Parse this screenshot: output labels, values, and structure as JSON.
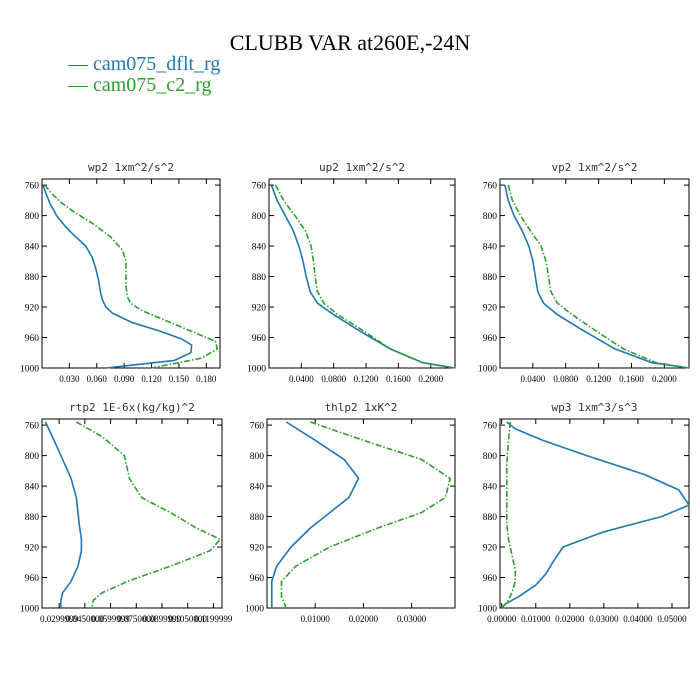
{
  "chart_data": {
    "title": "CLUBB VAR at260E,-24N",
    "legend": {
      "placement": "top-left",
      "entries": [
        {
          "label": "— cam075_dflt_rg",
          "color": "#1f77b4",
          "dash": "solid"
        },
        {
          "label": "— cam075_c2_rg",
          "color": "#2ca02c",
          "dash": "dashdot"
        }
      ]
    },
    "panels": [
      {
        "type": "line",
        "title": "wp2  1xm^2/s^2",
        "xlim": [
          0.0,
          0.195
        ],
        "ylim": [
          1000,
          752
        ],
        "xticks": [
          0.03,
          0.06,
          0.09,
          0.12,
          0.15,
          0.18
        ],
        "xtick_labels": [
          "0.030",
          "0.060",
          "0.090",
          "0.120",
          "0.150",
          "0.180"
        ],
        "yticks": [
          760,
          800,
          840,
          880,
          920,
          960,
          1000
        ],
        "ytick_labels": [
          "760",
          "800",
          "840",
          "880",
          "920",
          "960",
          "1000"
        ],
        "series": [
          {
            "name": "cam075_dflt_rg",
            "x": [
              0.001,
              0.004,
              0.009,
              0.016,
              0.026,
              0.037,
              0.048,
              0.055,
              0.059,
              0.062,
              0.064,
              0.066,
              0.07,
              0.077,
              0.098,
              0.13,
              0.153,
              0.164,
              0.163,
              0.145,
              0.07
            ],
            "y": [
              760,
              770,
              785,
              800,
              815,
              828,
              840,
              855,
              870,
              885,
              900,
              910,
              920,
              928,
              940,
              952,
              962,
              970,
              980,
              990,
              1000
            ]
          },
          {
            "name": "cam075_c2_rg",
            "x": [
              0.003,
              0.01,
              0.02,
              0.035,
              0.055,
              0.075,
              0.088,
              0.092,
              0.092,
              0.092,
              0.093,
              0.097,
              0.11,
              0.14,
              0.17,
              0.19,
              0.192,
              0.175,
              0.12
            ],
            "y": [
              760,
              770,
              782,
              795,
              810,
              828,
              845,
              860,
              875,
              890,
              905,
              915,
              925,
              940,
              955,
              965,
              975,
              987,
              1000
            ]
          }
        ]
      },
      {
        "type": "line",
        "title": "up2  1xm^2/s^2",
        "xlim": [
          0.0,
          0.23
        ],
        "ylim": [
          1000,
          752
        ],
        "xticks": [
          0.04,
          0.08,
          0.12,
          0.16,
          0.2
        ],
        "xtick_labels": [
          "0.0400",
          "0.0800",
          "0.1200",
          "0.1600",
          "0.2000"
        ],
        "yticks": [
          760,
          800,
          840,
          880,
          920,
          960,
          1000
        ],
        "ytick_labels": [
          "760",
          "800",
          "840",
          "880",
          "920",
          "960",
          "1000"
        ],
        "series": [
          {
            "name": "cam075_dflt_rg",
            "x": [
              0.003,
              0.01,
              0.02,
              0.03,
              0.037,
              0.042,
              0.046,
              0.051,
              0.06,
              0.08,
              0.11,
              0.15,
              0.19,
              0.23
            ],
            "y": [
              760,
              780,
              800,
              820,
              840,
              860,
              880,
              900,
              915,
              930,
              950,
              975,
              993,
              1000
            ]
          },
          {
            "name": "cam075_c2_rg",
            "x": [
              0.008,
              0.018,
              0.032,
              0.045,
              0.052,
              0.055,
              0.057,
              0.06,
              0.068,
              0.085,
              0.115,
              0.15,
              0.19,
              0.23
            ],
            "y": [
              760,
              780,
              800,
              820,
              840,
              860,
              880,
              900,
              915,
              930,
              950,
              975,
              993,
              1000
            ]
          }
        ]
      },
      {
        "type": "line",
        "title": "vp2  1xm^2/s^2",
        "xlim": [
          0.0,
          0.23
        ],
        "ylim": [
          1000,
          752
        ],
        "xticks": [
          0.04,
          0.08,
          0.12,
          0.16,
          0.2
        ],
        "xtick_labels": [
          "0.0400",
          "0.0800",
          "0.1200",
          "0.1600",
          "0.2000"
        ],
        "yticks": [
          760,
          800,
          840,
          880,
          920,
          960,
          1000
        ],
        "ytick_labels": [
          "760",
          "800",
          "840",
          "880",
          "920",
          "960",
          "1000"
        ],
        "series": [
          {
            "name": "cam075_dflt_rg",
            "x": [
              0.006,
              0.01,
              0.017,
              0.027,
              0.035,
              0.04,
              0.043,
              0.046,
              0.053,
              0.07,
              0.1,
              0.14,
              0.185,
              0.23
            ],
            "y": [
              760,
              780,
              800,
              820,
              840,
              860,
              880,
              900,
              915,
              930,
              950,
              975,
              993,
              1000
            ]
          },
          {
            "name": "cam075_c2_rg",
            "x": [
              0.01,
              0.015,
              0.025,
              0.037,
              0.05,
              0.056,
              0.059,
              0.062,
              0.07,
              0.088,
              0.115,
              0.15,
              0.19,
              0.23
            ],
            "y": [
              760,
              780,
              800,
              820,
              840,
              860,
              880,
              900,
              915,
              930,
              950,
              975,
              993,
              1000
            ]
          }
        ]
      },
      {
        "type": "line",
        "title": "rtp2  1E-6x(kg/kg)^2",
        "xlim": [
          0.02,
          0.125
        ],
        "ylim": [
          1000,
          752
        ],
        "xticks": [
          0.03,
          0.045,
          0.06,
          0.075,
          0.09,
          0.105,
          0.12
        ],
        "xtick_labels": [
          "0.0299999",
          "0.0450000",
          "0.0599999",
          "0.0750000",
          "0.0899999",
          "0.1050000",
          "0.1199999"
        ],
        "yticks": [
          760,
          800,
          840,
          880,
          920,
          960,
          1000
        ],
        "ytick_labels": [
          "760",
          "800",
          "840",
          "880",
          "920",
          "960",
          "1000"
        ],
        "series": [
          {
            "name": "cam075_dflt_rg",
            "x": [
              0.022,
              0.026,
              0.031,
              0.037,
              0.04,
              0.041,
              0.042,
              0.043,
              0.043,
              0.041,
              0.037,
              0.032,
              0.031,
              0.031
            ],
            "y": [
              756,
              775,
              800,
              830,
              855,
              875,
              895,
              910,
              925,
              945,
              965,
              980,
              990,
              1000
            ]
          },
          {
            "name": "cam075_c2_rg",
            "x": [
              0.04,
              0.055,
              0.068,
              0.071,
              0.078,
              0.095,
              0.11,
              0.124,
              0.118,
              0.095,
              0.07,
              0.055,
              0.05,
              0.049
            ],
            "y": [
              756,
              775,
              800,
              830,
              855,
              875,
              895,
              910,
              925,
              945,
              965,
              980,
              990,
              1000
            ]
          }
        ]
      },
      {
        "type": "line",
        "title": "thlp2  1xK^2",
        "xlim": [
          0.0,
          0.039
        ],
        "ylim": [
          1000,
          752
        ],
        "xticks": [
          0.01,
          0.02,
          0.03
        ],
        "xtick_labels": [
          "0.01000",
          "0.02000",
          "0.03000"
        ],
        "yticks": [
          760,
          800,
          840,
          880,
          920,
          960,
          1000
        ],
        "ytick_labels": [
          "760",
          "800",
          "840",
          "880",
          "920",
          "960",
          "1000"
        ],
        "series": [
          {
            "name": "cam075_dflt_rg",
            "x": [
              0.004,
              0.01,
              0.016,
              0.019,
              0.017,
              0.013,
              0.009,
              0.005,
              0.002,
              0.001,
              0.001,
              0.001
            ],
            "y": [
              756,
              780,
              805,
              830,
              855,
              875,
              895,
              920,
              945,
              965,
              985,
              1000
            ]
          },
          {
            "name": "cam075_c2_rg",
            "x": [
              0.009,
              0.02,
              0.032,
              0.038,
              0.037,
              0.032,
              0.023,
              0.013,
              0.006,
              0.003,
              0.003,
              0.004
            ],
            "y": [
              756,
              780,
              805,
              830,
              855,
              875,
              895,
              920,
              945,
              965,
              985,
              1000
            ]
          }
        ]
      },
      {
        "type": "line",
        "title": "wp3  1xm^3/s^3",
        "xlim": [
          -0.0005,
          0.055
        ],
        "ylim": [
          1000,
          752
        ],
        "xticks": [
          0.0,
          0.01,
          0.02,
          0.03,
          0.04,
          0.05
        ],
        "xtick_labels": [
          "0.00000",
          "0.01000",
          "0.02000",
          "0.03000",
          "0.04000",
          "0.05000"
        ],
        "yticks": [
          760,
          800,
          840,
          880,
          920,
          960,
          1000
        ],
        "ytick_labels": [
          "760",
          "800",
          "840",
          "880",
          "920",
          "960",
          "1000"
        ],
        "series": [
          {
            "name": "cam075_dflt_rg",
            "x": [
              0.0015,
              0.004,
              0.012,
              0.025,
              0.042,
              0.052,
              0.055,
              0.047,
              0.03,
              0.018,
              0.015,
              0.013,
              0.01,
              0.005,
              0.001,
              0.0
            ],
            "y": [
              756,
              765,
              780,
              800,
              825,
              845,
              865,
              880,
              900,
              920,
              940,
              955,
              970,
              985,
              995,
              1000
            ]
          },
          {
            "name": "cam075_c2_rg",
            "x": [
              0.0025,
              0.002,
              0.0015,
              0.0015,
              0.0015,
              0.0015,
              0.002,
              0.003,
              0.004,
              0.004,
              0.003,
              0.0015,
              0.0
            ],
            "y": [
              756,
              780,
              810,
              840,
              870,
              890,
              910,
              930,
              950,
              965,
              980,
              993,
              1000
            ]
          }
        ]
      }
    ]
  }
}
